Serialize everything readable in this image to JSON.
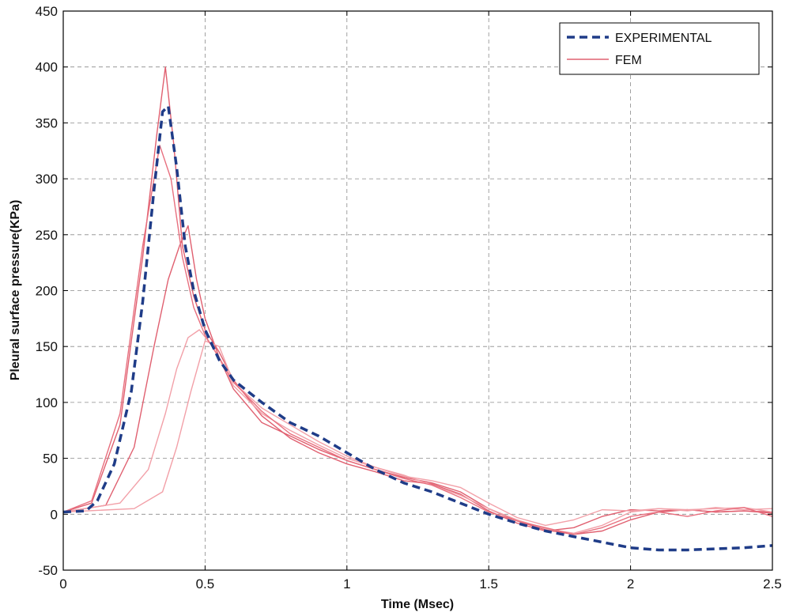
{
  "chart_data": {
    "type": "line",
    "xlabel": "Time (Msec)",
    "ylabel": "Pleural surface pressure(KPa)",
    "xlim": [
      0,
      2.5
    ],
    "ylim": [
      -50,
      450
    ],
    "xticks": [
      0,
      0.5,
      1,
      1.5,
      2,
      2.5
    ],
    "xtick_labels": [
      "0",
      "0.5",
      "1",
      "1.5",
      "2",
      "2.5"
    ],
    "yticks": [
      -50,
      0,
      50,
      100,
      150,
      200,
      250,
      300,
      350,
      400,
      450
    ],
    "ytick_labels": [
      "-50",
      "0",
      "50",
      "100",
      "150",
      "200",
      "250",
      "300",
      "350",
      "400",
      "450"
    ],
    "grid": true,
    "legend_position": "top-right",
    "series": [
      {
        "name": "EXPERIMENTAL",
        "color": "#1f3c88",
        "style": "dashed",
        "x": [
          0,
          0.08,
          0.12,
          0.18,
          0.24,
          0.28,
          0.32,
          0.35,
          0.37,
          0.4,
          0.43,
          0.46,
          0.5,
          0.55,
          0.6,
          0.7,
          0.8,
          0.9,
          1.0,
          1.1,
          1.2,
          1.3,
          1.4,
          1.5,
          1.6,
          1.7,
          1.8,
          1.9,
          2.0,
          2.1,
          2.2,
          2.3,
          2.4,
          2.5
        ],
        "y": [
          2,
          3,
          12,
          45,
          110,
          190,
          290,
          360,
          365,
          310,
          240,
          200,
          165,
          138,
          120,
          100,
          82,
          70,
          55,
          40,
          28,
          20,
          10,
          0,
          -8,
          -15,
          -20,
          -25,
          -30,
          -32,
          -32,
          -31,
          -30,
          -28
        ]
      },
      {
        "name": "FEM",
        "color": "#e06070",
        "style": "solid",
        "x": [
          0,
          0.1,
          0.2,
          0.28,
          0.33,
          0.36,
          0.39,
          0.42,
          0.46,
          0.5,
          0.55,
          0.6,
          0.7,
          0.8,
          0.9,
          1.0,
          1.1,
          1.2,
          1.3,
          1.4,
          1.5,
          1.6,
          1.7,
          1.8,
          1.9,
          2.0,
          2.1,
          2.2,
          2.3,
          2.4,
          2.5
        ],
        "y": [
          2,
          10,
          80,
          230,
          340,
          400,
          330,
          240,
          195,
          165,
          145,
          120,
          88,
          68,
          55,
          45,
          38,
          30,
          27,
          18,
          3,
          -8,
          -15,
          -12,
          -2,
          4,
          3,
          4,
          2,
          3,
          2
        ]
      },
      {
        "x": [
          0,
          0.15,
          0.25,
          0.32,
          0.37,
          0.41,
          0.44,
          0.47,
          0.5,
          0.55,
          0.6,
          0.7,
          0.8,
          0.9,
          1.0,
          1.1,
          1.2,
          1.3,
          1.4,
          1.5,
          1.6,
          1.7,
          1.8,
          1.9,
          2.0,
          2.1,
          2.2,
          2.3,
          2.4,
          2.5
        ],
        "y": [
          2,
          8,
          60,
          150,
          210,
          240,
          258,
          210,
          175,
          140,
          112,
          82,
          70,
          58,
          48,
          40,
          33,
          28,
          20,
          5,
          -6,
          -14,
          -18,
          -15,
          -5,
          2,
          4,
          2,
          3,
          1
        ],
        "color": "#e06070",
        "style": "solid"
      },
      {
        "x": [
          0,
          0.2,
          0.3,
          0.36,
          0.4,
          0.44,
          0.48,
          0.52,
          0.56,
          0.6,
          0.7,
          0.8,
          0.9,
          1.0,
          1.1,
          1.2,
          1.3,
          1.4,
          1.5,
          1.6,
          1.7,
          1.8,
          1.9,
          2.0,
          2.1,
          2.2,
          2.3,
          2.4,
          2.5
        ],
        "y": [
          2,
          10,
          40,
          90,
          130,
          158,
          165,
          152,
          135,
          115,
          90,
          75,
          62,
          50,
          42,
          34,
          30,
          24,
          10,
          -3,
          -10,
          -5,
          4,
          3,
          5,
          3,
          6,
          4,
          5
        ],
        "color": "#f2a0a8",
        "style": "solid"
      },
      {
        "x": [
          0,
          0.25,
          0.35,
          0.4,
          0.45,
          0.5,
          0.55,
          0.6,
          0.7,
          0.8,
          0.9,
          1.0,
          1.1,
          1.2,
          1.3,
          1.4,
          1.5,
          1.6,
          1.7,
          1.8,
          1.9,
          2.0,
          2.1,
          2.2,
          2.3,
          2.4,
          2.5
        ],
        "y": [
          2,
          5,
          20,
          60,
          110,
          155,
          150,
          118,
          95,
          80,
          65,
          52,
          42,
          35,
          26,
          17,
          5,
          -5,
          -13,
          -17,
          -10,
          2,
          5,
          4,
          5,
          6,
          2
        ],
        "color": "#f2a0a8",
        "style": "solid"
      },
      {
        "x": [
          0,
          0.1,
          0.2,
          0.28,
          0.34,
          0.38,
          0.42,
          0.46,
          0.5,
          0.55,
          0.6,
          0.7,
          0.8,
          0.9,
          1.0,
          1.1,
          1.2,
          1.3,
          1.4,
          1.5,
          1.6,
          1.7,
          1.8,
          1.9,
          2.0,
          2.1,
          2.2,
          2.3,
          2.4,
          2.5
        ],
        "y": [
          2,
          12,
          90,
          240,
          330,
          300,
          230,
          185,
          160,
          140,
          118,
          92,
          72,
          60,
          48,
          40,
          32,
          26,
          15,
          2,
          -6,
          -12,
          -18,
          -12,
          -2,
          2,
          -2,
          3,
          6,
          -2
        ],
        "color": "#e8707f",
        "style": "solid"
      }
    ]
  }
}
